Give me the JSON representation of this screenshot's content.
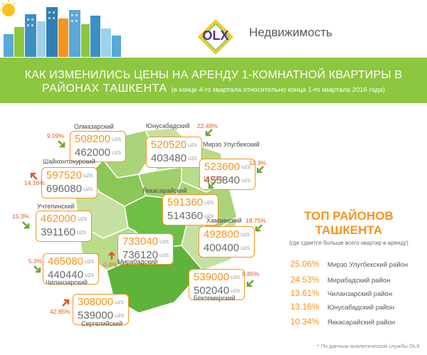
{
  "header": {
    "logo_text": "OLX",
    "section_label": "Недвижимость"
  },
  "banner": {
    "title_line1": "КАК ИЗМЕНИЛИСЬ ЦЕНЫ НА  АРЕНДУ 1-КОМНАТНОЙ  КВАРТИРЫ  В",
    "title_line2": "РАЙОНАХ ТАШКЕНТА",
    "subtitle": "(в конце 4-го квартала относительно конца 1-го квартала 2016 года)"
  },
  "currency": "UZS",
  "districts": [
    {
      "name": "Олмазарский",
      "new_price": "508200",
      "old_price": "462000",
      "change": "9.09%",
      "direction": "up"
    },
    {
      "name": "Юнусабадский",
      "new_price": "520520",
      "old_price": "403480",
      "change": "22.49%",
      "direction": "up"
    },
    {
      "name": "Мирзо Улугбекский",
      "new_price": "523600",
      "old_price": "455840",
      "change": "12.9%",
      "direction": "up"
    },
    {
      "name": "Шайхонтохурский",
      "new_price": "597520",
      "old_price": "696080",
      "change": "14.16%",
      "direction": "down"
    },
    {
      "name": "Яккасарайский",
      "new_price": "591360",
      "old_price": "514360",
      "change": "13.02%",
      "direction": "up"
    },
    {
      "name": "Учтепинский",
      "new_price": "462000",
      "old_price": "391160",
      "change": "15.3%",
      "direction": "up"
    },
    {
      "name": "Хамзинский",
      "new_price": "492800",
      "old_price": "400400",
      "change": "18.75%",
      "direction": "up"
    },
    {
      "name": "Мирабадский",
      "new_price": "733040",
      "old_price": "736120",
      "change": "0.4%",
      "direction": "down"
    },
    {
      "name": "Чиланзарский",
      "new_price": "465080",
      "old_price": "440440",
      "change": "5.3%",
      "direction": "up"
    },
    {
      "name": "Бектемирский",
      "new_price": "539000",
      "old_price": "502040",
      "change": "6.85%",
      "direction": "up"
    },
    {
      "name": "Сергелийский",
      "new_price": "308000",
      "old_price": "539000",
      "change": "42.85%",
      "direction": "down"
    }
  ],
  "top": {
    "title": "ТОП РАЙОНОВ ТАШКЕНТА",
    "subtitle": "(где сдается больше всего квартир в аренду)",
    "items": [
      {
        "pct": "25.06%",
        "name": "Мирзо Улугбекский район"
      },
      {
        "pct": "24.53%",
        "name": "Мирабадский район"
      },
      {
        "pct": "13.61%",
        "name": "Чиланзарский район"
      },
      {
        "pct": "13.16%",
        "name": "Юнусабадский район"
      },
      {
        "pct": "10.34%",
        "name": "Яккасарайский район"
      }
    ]
  },
  "colors": {
    "accent": "#f7941d",
    "banner": "#8dc63f",
    "brand": "#5b2d8e",
    "map_light": "#c5e0a0",
    "map_dark": "#6fbf44"
  },
  "footnote": "* По данным аналитической службы OLX"
}
